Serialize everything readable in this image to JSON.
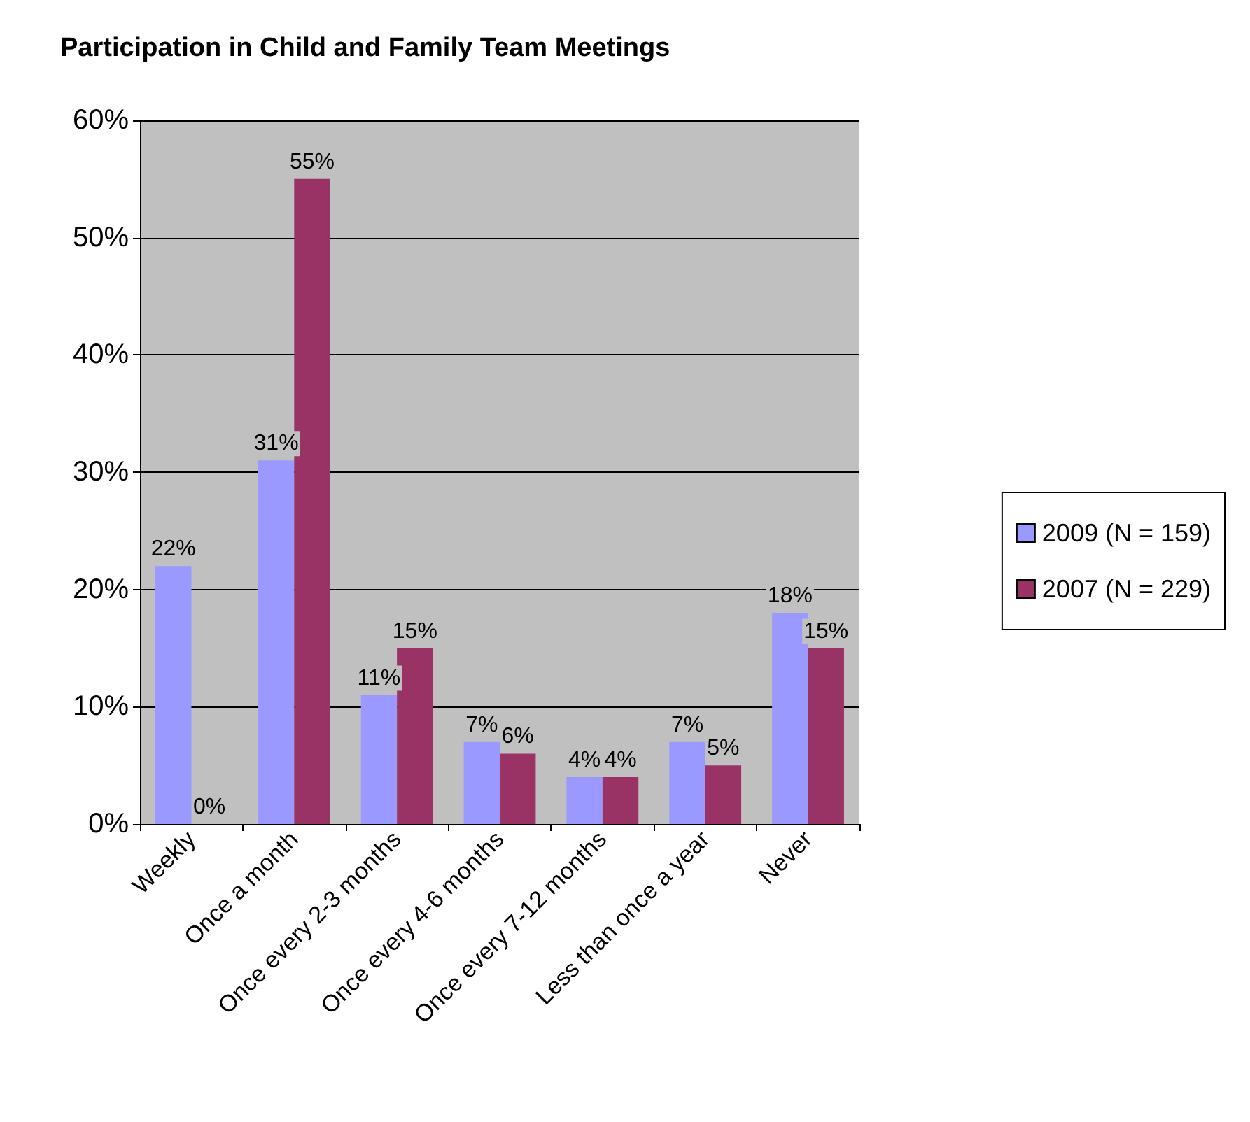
{
  "chart_data": {
    "type": "bar",
    "title": "Participation in Child and Family Team Meetings",
    "categories": [
      "Weekly",
      "Once a month",
      "Once every 2-3 months",
      "Once every 4-6 months",
      "Once every 7-12 months",
      "Less than once a year",
      "Never"
    ],
    "series": [
      {
        "name": "2009 (N = 159)",
        "color": "#9999ff",
        "values": [
          22,
          31,
          11,
          7,
          4,
          7,
          18
        ],
        "value_labels": [
          "22%",
          "31%",
          "11%",
          "7%",
          "4%",
          "7%",
          "18%"
        ]
      },
      {
        "name": "2007 (N = 229)",
        "color": "#993366",
        "values": [
          0,
          55,
          15,
          6,
          4,
          5,
          15
        ],
        "value_labels": [
          "0%",
          "55%",
          "15%",
          "6%",
          "4%",
          "5%",
          "15%"
        ]
      }
    ],
    "ylim": [
      0,
      60
    ],
    "yticks": [
      {
        "value": 0,
        "label": "0%"
      },
      {
        "value": 10,
        "label": "10%"
      },
      {
        "value": 20,
        "label": "20%"
      },
      {
        "value": 30,
        "label": "30%"
      },
      {
        "value": 40,
        "label": "40%"
      },
      {
        "value": 50,
        "label": "50%"
      },
      {
        "value": 60,
        "label": "60%"
      }
    ],
    "grid": true,
    "legend": "right"
  }
}
